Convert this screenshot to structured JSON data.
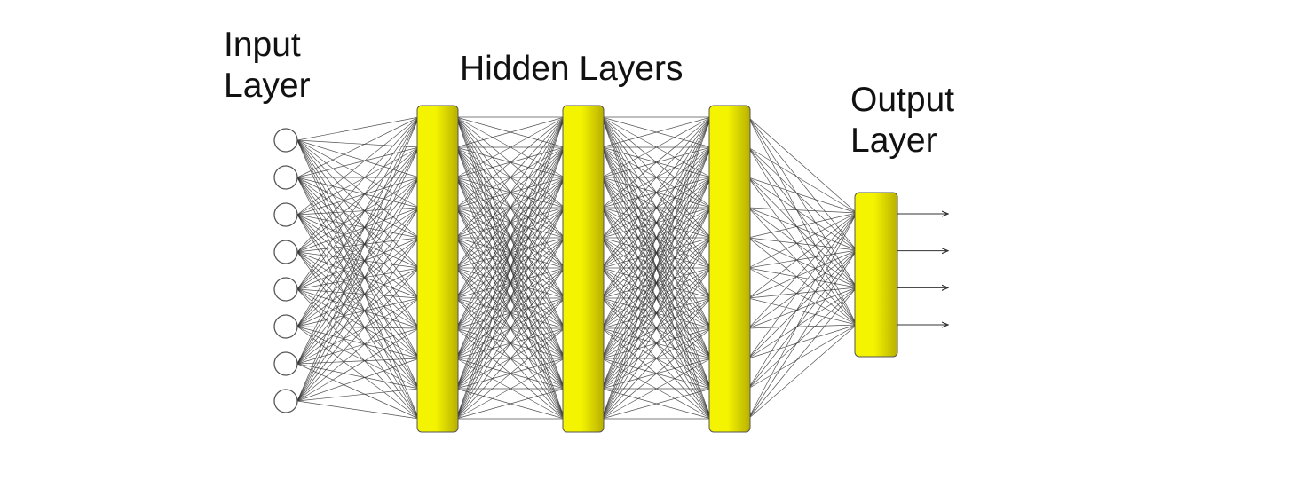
{
  "labels": {
    "input_line1": "Input",
    "input_line2": "Layer",
    "hidden": "Hidden Layers",
    "output_line1": "Output",
    "output_line2": "Layer"
  },
  "network": {
    "input_nodes": 8,
    "hidden_layers": 3,
    "outputs": 4,
    "colors": {
      "layer_fill_light": "#f4f400",
      "layer_fill_dark": "#b8b000",
      "node_stroke": "#555555",
      "connection": "#333333"
    }
  }
}
